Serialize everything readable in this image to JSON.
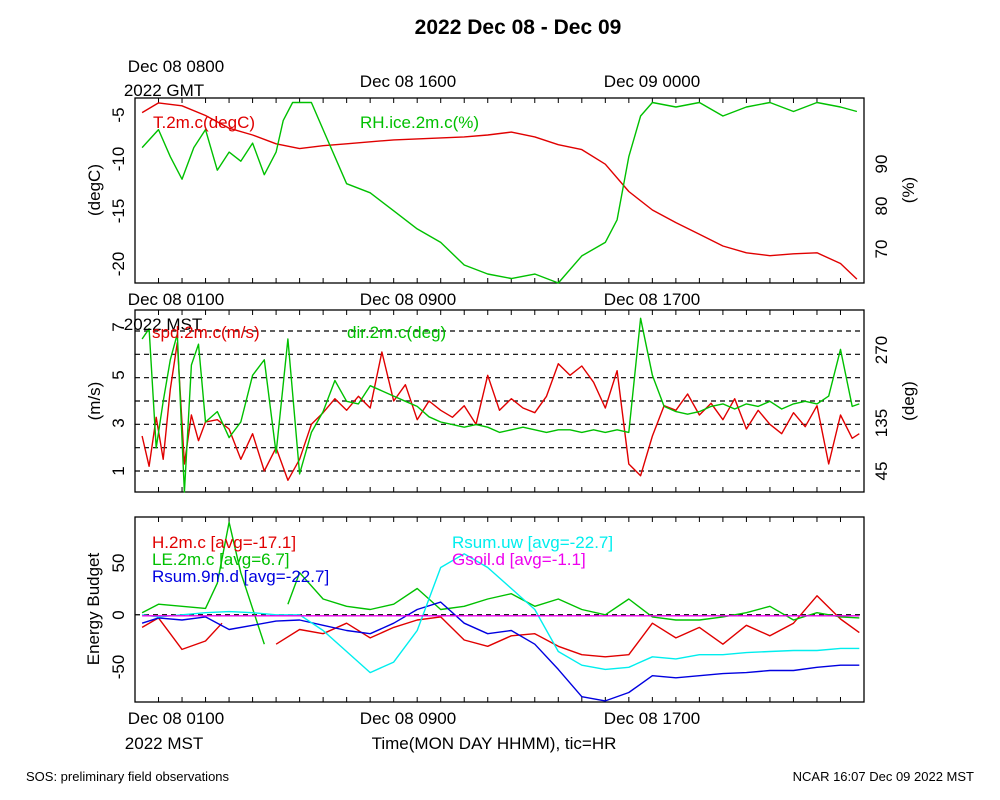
{
  "title": "2022 Dec 08 - Dec 09",
  "footer_left": "SOS: preliminary field observations",
  "footer_right": "NCAR 16:07 Dec 09 2022 MST",
  "colors": {
    "red": "#e00000",
    "green": "#00c000",
    "blue": "#0000e0",
    "cyan": "#00eeee",
    "magenta": "#ee00ee"
  },
  "chart_data": [
    {
      "type": "line",
      "id": "temperature_humidity",
      "top_axis_labels": [
        "Dec 08 0800",
        "Dec 08 1600",
        "Dec 09 0000"
      ],
      "top_axis_unit": "2022 GMT",
      "ylabel_left": "(degC)",
      "ylabel_right": "(%)",
      "ylim_left": [
        -22,
        -3
      ],
      "ylim_right": [
        61,
        102
      ],
      "yticks_left": [
        "-5",
        "-10",
        "-15",
        "-20"
      ],
      "yticks_right": [
        "90",
        "80",
        "70"
      ],
      "x_hours_mst": [
        0,
        31
      ],
      "series": [
        {
          "name": "T.2m.c(degC)",
          "color": "#e00000",
          "axis": "left",
          "x": [
            0.3,
            1,
            2,
            3,
            4,
            5,
            6,
            7,
            8,
            9,
            10,
            11,
            12,
            13,
            14,
            15,
            16,
            17,
            18,
            19,
            20,
            21,
            22,
            23,
            24,
            25,
            26,
            27,
            28,
            29,
            30,
            30.7
          ],
          "y": [
            -4.5,
            -3.5,
            -3.8,
            -4.8,
            -6.1,
            -6.8,
            -7.7,
            -8.2,
            -7.9,
            -7.7,
            -7.5,
            -7.3,
            -7.2,
            -7.1,
            -7.0,
            -6.8,
            -6.5,
            -7.0,
            -7.8,
            -8.3,
            -9.8,
            -12.6,
            -14.5,
            -15.8,
            -17.0,
            -18.2,
            -18.9,
            -19.2,
            -19.0,
            -18.9,
            -20.0,
            -21.6
          ]
        },
        {
          "name": "RH.ice.2m.c(%)",
          "color": "#00c000",
          "axis": "right",
          "x": [
            0.3,
            1,
            1.5,
            2,
            2.5,
            3,
            3.5,
            4,
            4.5,
            5,
            5.5,
            6,
            6.3,
            6.7,
            7,
            7.5,
            8,
            9,
            10,
            11,
            12,
            13,
            14,
            15,
            16,
            17,
            18,
            19,
            20,
            20.5,
            21,
            21.5,
            22,
            23,
            24,
            25,
            26,
            27,
            28,
            29,
            30,
            30.7
          ],
          "y": [
            91,
            95,
            89,
            84,
            91,
            95,
            86,
            90,
            88,
            92,
            85,
            90,
            97,
            101,
            101,
            101,
            95,
            83,
            81,
            77,
            73,
            70,
            65,
            63,
            62,
            63,
            60,
            67,
            70,
            75,
            89,
            98,
            101,
            100,
            101,
            98,
            100,
            101,
            99,
            101,
            100,
            99
          ]
        }
      ]
    },
    {
      "type": "line",
      "id": "wind",
      "top_axis_labels": [
        "Dec 08 0100",
        "Dec 08 0900",
        "Dec 08 1700"
      ],
      "top_axis_unit": "2022 MST",
      "ylabel_left": "(m/s)",
      "ylabel_right": "(deg)",
      "ylim_left": [
        0.1,
        7.9
      ],
      "ylim_right": [
        5,
        356
      ],
      "yticks_left": [
        "7",
        "5",
        "3",
        "1"
      ],
      "yticks_right": [
        "270",
        "135",
        "45"
      ],
      "grid_y_values": [
        1,
        2,
        3,
        4,
        5,
        6,
        7
      ],
      "x_hours_mst": [
        0,
        31
      ],
      "series": [
        {
          "name": "spd.2m.c(m/s)",
          "color": "#e00000",
          "axis": "left",
          "x": [
            0.3,
            0.6,
            0.9,
            1.2,
            1.5,
            1.8,
            2.1,
            2.4,
            2.7,
            3,
            3.5,
            4,
            4.5,
            5,
            5.5,
            6,
            6.5,
            7,
            7.5,
            8,
            8.5,
            9,
            9.5,
            10,
            10.5,
            11,
            11.5,
            12,
            12.5,
            13,
            13.5,
            14,
            14.5,
            15,
            15.5,
            16,
            16.5,
            17,
            17.5,
            18,
            18.5,
            19,
            19.5,
            20,
            20.5,
            21,
            21.5,
            22,
            22.5,
            23,
            23.5,
            24,
            24.5,
            25,
            25.5,
            26,
            26.5,
            27,
            27.5,
            28,
            28.5,
            29,
            29.5,
            30,
            30.5,
            30.8
          ],
          "y": [
            2.5,
            1.2,
            3.3,
            1.5,
            4.5,
            6.5,
            1.3,
            3.4,
            2.3,
            3.1,
            3.2,
            2.8,
            1.5,
            2.6,
            1.0,
            2.0,
            0.6,
            1.5,
            3.0,
            3.5,
            4.1,
            3.6,
            4.2,
            3.7,
            6.1,
            4.0,
            4.7,
            3.2,
            4.0,
            3.6,
            3.3,
            3.8,
            3.0,
            5.1,
            3.6,
            4.1,
            3.7,
            3.5,
            4.2,
            5.6,
            5.1,
            5.5,
            4.8,
            3.7,
            5.3,
            1.3,
            0.8,
            2.5,
            3.8,
            3.6,
            4.3,
            3.4,
            3.9,
            3.2,
            4.1,
            2.8,
            3.6,
            3.0,
            2.6,
            3.5,
            2.9,
            3.8,
            1.3,
            3.4,
            2.4,
            2.6
          ]
        },
        {
          "name": "dir.2m.c(deg)",
          "color": "#00c000",
          "axis": "right",
          "x": [
            0.3,
            0.6,
            0.9,
            1.2,
            1.5,
            1.8,
            2.1,
            2.4,
            2.7,
            3,
            3.5,
            4,
            4.5,
            5,
            5.5,
            6,
            6.5,
            7,
            7.5,
            8,
            8.5,
            9,
            9.5,
            10,
            10.5,
            11,
            11.5,
            12,
            12.5,
            13,
            13.5,
            14,
            14.5,
            15,
            15.5,
            16,
            16.5,
            17,
            17.5,
            18,
            18.5,
            19,
            19.5,
            20,
            20.5,
            21,
            21.5,
            22,
            22.5,
            23,
            23.5,
            24,
            24.5,
            25,
            25.5,
            26,
            26.5,
            27,
            27.5,
            28,
            28.5,
            29,
            29.5,
            30,
            30.5,
            30.8
          ],
          "y": [
            300,
            320,
            90,
            180,
            260,
            310,
            5,
            250,
            290,
            140,
            160,
            110,
            140,
            230,
            260,
            80,
            300,
            40,
            120,
            160,
            220,
            180,
            175,
            210,
            200,
            190,
            180,
            170,
            150,
            140,
            135,
            130,
            135,
            130,
            120,
            125,
            130,
            125,
            120,
            125,
            125,
            120,
            125,
            120,
            125,
            120,
            340,
            230,
            170,
            160,
            155,
            160,
            170,
            175,
            165,
            175,
            170,
            180,
            165,
            175,
            180,
            175,
            190,
            280,
            170,
            175
          ]
        }
      ]
    },
    {
      "type": "line",
      "id": "energy",
      "ylabel_left": "Energy Budget",
      "ylim_left": [
        -83,
        93
      ],
      "yticks_left": [
        "50",
        "0",
        "-50"
      ],
      "bottom_axis_labels": [
        "Dec 08 0100",
        "Dec 08 0900",
        "Dec 08 1700"
      ],
      "bottom_axis_unit": "2022 MST",
      "xlabel": "Time(MON DAY HHMM), tic=HR",
      "x_hours_mst": [
        0,
        31
      ],
      "legend": [
        {
          "label": "H.2m.c [avg=-17.1]",
          "color": "#e00000"
        },
        {
          "label": "LE.2m.c [avg=6.7]",
          "color": "#00c000"
        },
        {
          "label": "Rsum.9m.d [avg=-22.7]",
          "color": "#0000e0"
        },
        {
          "label": "Rsum.uw [avg=-22.7]",
          "color": "#00eeee"
        },
        {
          "label": "Gsoil.d [avg=-1.1]",
          "color": "#ee00ee"
        }
      ],
      "series": [
        {
          "name": "H.2m.c",
          "color": "#e00000",
          "segments": [
            {
              "x": [
                0.3,
                1,
                2,
                3,
                3.7
              ],
              "y": [
                -12,
                -3,
                -33,
                -25,
                -8
              ]
            },
            {
              "x": [
                6,
                7,
                8,
                9,
                10,
                11,
                12,
                13,
                14,
                15,
                16,
                17,
                18,
                19,
                20,
                21,
                22,
                23,
                24,
                25,
                26,
                27,
                28,
                29,
                30,
                30.8
              ],
              "y": [
                -28,
                -14,
                -18,
                -8,
                -22,
                -12,
                -5,
                -2,
                -24,
                -30,
                -20,
                -18,
                -30,
                -38,
                -40,
                -38,
                -8,
                -22,
                -12,
                -28,
                -10,
                -20,
                -8,
                18,
                -4,
                -17
              ]
            }
          ]
        },
        {
          "name": "LE.2m.c",
          "color": "#00c000",
          "segments": [
            {
              "x": [
                0.3,
                1,
                2,
                3,
                3.5,
                4,
                4.5,
                5.5
              ],
              "y": [
                2,
                10,
                8,
                6,
                30,
                88,
                40,
                -28
              ]
            },
            {
              "x": [
                6.5,
                7,
                8,
                9,
                10,
                11,
                12,
                13,
                14,
                15,
                16,
                17,
                18,
                19,
                20,
                21,
                22,
                23,
                24,
                25,
                26,
                27,
                28,
                29,
                30,
                30.8
              ],
              "y": [
                10,
                40,
                15,
                8,
                5,
                10,
                25,
                5,
                8,
                15,
                20,
                8,
                15,
                5,
                0,
                15,
                -2,
                -5,
                -5,
                -2,
                2,
                8,
                -5,
                2,
                -2,
                -3
              ]
            }
          ]
        },
        {
          "name": "Rsum.9m.d",
          "color": "#0000e0",
          "segments": [
            {
              "x": [
                0.3,
                1,
                2,
                3,
                4,
                5,
                6,
                7,
                8,
                9,
                10,
                11,
                12,
                13,
                14,
                15,
                16,
                17,
                18,
                19,
                20,
                21,
                22,
                23,
                24,
                25,
                26,
                27,
                28,
                29,
                30,
                30.8
              ],
              "y": [
                -8,
                -3,
                -5,
                -2,
                -14,
                -10,
                -6,
                -5,
                -10,
                -15,
                -18,
                -8,
                5,
                12,
                -8,
                -18,
                -15,
                -28,
                -52,
                -78,
                -82,
                -74,
                -58,
                -60,
                -58,
                -56,
                -55,
                -53,
                -53,
                -50,
                -48,
                -48
              ]
            }
          ]
        },
        {
          "name": "Rsum.uw",
          "color": "#00eeee",
          "segments": [
            {
              "x": [
                0.3,
                1,
                2,
                3,
                4,
                5,
                6,
                7,
                8,
                9,
                10,
                11,
                12,
                13,
                14,
                15,
                16,
                17,
                18,
                19,
                20,
                21,
                22,
                23,
                24,
                25,
                26,
                27,
                28,
                29,
                30,
                30.8
              ],
              "y": [
                0,
                -2,
                0,
                2,
                3,
                2,
                0,
                0,
                -15,
                -35,
                -55,
                -45,
                -15,
                45,
                58,
                45,
                25,
                5,
                -35,
                -48,
                -52,
                -50,
                -40,
                -42,
                -38,
                -38,
                -36,
                -35,
                -34,
                -34,
                -32,
                -32
              ]
            }
          ]
        },
        {
          "name": "Gsoil.d",
          "color": "#ee00ee",
          "segments": [
            {
              "x": [
                0.3,
                5,
                10,
                15,
                20,
                25,
                30.8
              ],
              "y": [
                -1,
                -1,
                -1,
                -1,
                -1,
                -1,
                -1
              ]
            }
          ]
        }
      ]
    }
  ]
}
